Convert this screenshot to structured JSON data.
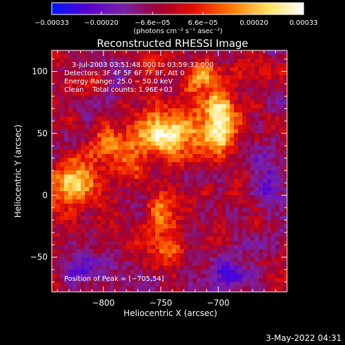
{
  "chart_data": {
    "type": "heatmap",
    "title": "Reconstructed RHESSI Image",
    "xlabel": "Heliocentric X (arcsec)",
    "ylabel": "Heliocentric Y (arcsec)",
    "xlim": [
      -845,
      -640
    ],
    "ylim": [
      -78,
      117
    ],
    "xticks": [
      -800,
      -750,
      -700
    ],
    "xtick_labels": [
      "−800",
      "−750",
      "−700"
    ],
    "yticks": [
      -50,
      0,
      50,
      100
    ],
    "ytick_labels": [
      "−50",
      "0",
      "50",
      "100"
    ],
    "colorbar": {
      "range": [
        -0.00033,
        0.00033
      ],
      "ticks": [
        -0.00033,
        -0.0002,
        -6.6e-05,
        6.6e-05,
        0.0002,
        0.00033
      ],
      "tick_labels": [
        "−0.00033",
        "−0.00020",
        "−6.6e−05",
        "6.6e−05",
        "0.00020",
        "0.00033"
      ],
      "unit_label": "(photons cm⁻² s⁻¹ asec⁻²)",
      "colors": [
        "#0018ff",
        "#5a00d0",
        "#7a22a8",
        "#a00030",
        "#e81000",
        "#ff7a00",
        "#ffe060",
        "#ffffff"
      ]
    },
    "annotations": [
      "3-Jul-2003 03:51:48.000 to 03:59:32.000",
      "Detectors: 3F 4F 5F 6F 7F 8F, Att 0",
      "Energy Range: 25.0 − 50.0 keV",
      "Clean    Total counts: 1.96E+03"
    ],
    "peak_label": "Position of Peak = [−705,54]",
    "peak": [
      -705,
      54
    ],
    "sources": [
      {
        "x": -700,
        "y": 60,
        "v": 0.00033,
        "sx": 12,
        "sy": 18
      },
      {
        "x": -745,
        "y": 50,
        "v": 0.00028,
        "sx": 18,
        "sy": 12
      },
      {
        "x": -790,
        "y": 40,
        "v": 0.0002,
        "sx": 16,
        "sy": 10
      },
      {
        "x": -825,
        "y": 10,
        "v": 0.00024,
        "sx": 14,
        "sy": 10
      },
      {
        "x": -748,
        "y": -10,
        "v": 0.00018,
        "sx": 10,
        "sy": 12
      },
      {
        "x": -775,
        "y": 20,
        "v": 0.00016,
        "sx": 12,
        "sy": 10
      },
      {
        "x": -715,
        "y": 95,
        "v": 0.0002,
        "sx": 9,
        "sy": 9
      },
      {
        "x": -740,
        "y": -45,
        "v": 0.00013,
        "sx": 9,
        "sy": 7
      },
      {
        "x": -760,
        "y": 108,
        "v": 0.00012,
        "sx": 7,
        "sy": 6
      },
      {
        "x": -805,
        "y": 95,
        "v": 0.00011,
        "sx": 7,
        "sy": 7
      },
      {
        "x": -820,
        "y": -60,
        "v": -0.00018,
        "sx": 10,
        "sy": 8
      },
      {
        "x": -690,
        "y": -60,
        "v": -0.00014,
        "sx": 12,
        "sy": 10
      },
      {
        "x": -660,
        "y": 10,
        "v": -0.0001,
        "sx": 10,
        "sy": 20
      }
    ],
    "background_level": -5e-05,
    "noise_amplitude": 9e-05
  },
  "footer": {
    "date": "3-May-2022 04:31"
  }
}
